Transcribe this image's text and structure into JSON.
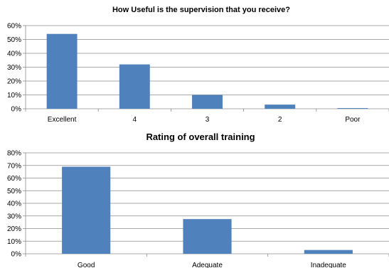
{
  "chart_data": [
    {
      "type": "bar",
      "title": "How Useful is the supervision that you receive?",
      "categories": [
        "Excellent",
        "4",
        "3",
        "2",
        "Poor"
      ],
      "values": [
        54,
        32,
        10,
        3,
        0.5
      ],
      "ylim": [
        0,
        60
      ],
      "yticks": [
        "0%",
        "10%",
        "20%",
        "30%",
        "40%",
        "50%",
        "60%"
      ],
      "unit": "%",
      "grid": true,
      "legend": "none",
      "bar_color": "#4f81bd"
    },
    {
      "type": "bar",
      "title": "Rating of overall training",
      "categories": [
        "Good",
        "Adequate",
        "Inadequate"
      ],
      "values": [
        69,
        27.5,
        3
      ],
      "ylim": [
        0,
        80
      ],
      "yticks": [
        "0%",
        "10%",
        "20%",
        "30%",
        "40%",
        "50%",
        "60%",
        "70%",
        "80%"
      ],
      "unit": "%",
      "grid": true,
      "legend": "none",
      "bar_color": "#4f81bd"
    }
  ]
}
